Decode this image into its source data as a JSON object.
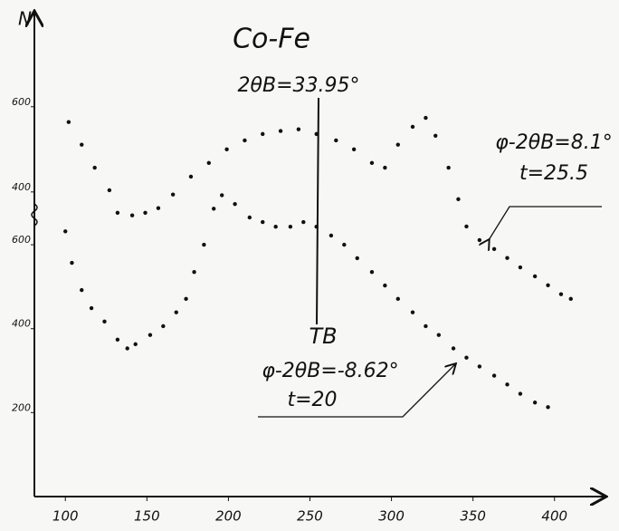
{
  "chart_data": {
    "type": "scatter",
    "title": "Co-Fe",
    "y_label": "N",
    "annotations": [
      "2θB=33.95°",
      "TB",
      "φ-2θB=8.1°",
      "t=25.5",
      "φ-2θB=-8.62°",
      "t=20"
    ],
    "xlim": [
      81,
      429
    ],
    "xticks": [
      100,
      150,
      200,
      250,
      300,
      350,
      400
    ],
    "ylim": [
      0,
      1140
    ],
    "yticks": [
      200,
      400,
      600
    ],
    "y2lim": [
      -315,
      808
    ],
    "y2ticks": [
      400,
      600
    ],
    "series": [
      {
        "axis": "y2",
        "color": "#111111",
        "x": [
          102,
          110,
          118,
          127,
          132,
          141,
          149,
          157,
          166,
          177,
          188,
          199,
          210,
          221,
          232,
          243,
          254,
          266,
          277,
          288,
          296,
          304,
          313,
          321,
          327,
          335,
          341,
          346,
          354,
          363,
          371,
          379,
          388,
          396,
          404,
          410
        ],
        "values": [
          564,
          511,
          457,
          404,
          351,
          345,
          351,
          362,
          394,
          436,
          468,
          500,
          521,
          536,
          543,
          547,
          536,
          521,
          500,
          468,
          457,
          511,
          553,
          574,
          532,
          457,
          383,
          319,
          287,
          266,
          245,
          223,
          202,
          181,
          160,
          149
        ]
      },
      {
        "color": "#111111",
        "x": [
          100,
          104,
          110,
          116,
          124,
          132,
          138,
          143,
          152,
          160,
          168,
          174,
          179,
          185,
          191,
          196,
          204,
          213,
          221,
          229,
          238,
          246,
          254,
          263,
          271,
          279,
          288,
          296,
          304,
          313,
          321,
          329,
          338,
          346,
          354,
          363,
          371,
          379,
          388,
          396
        ],
        "values": [
          632,
          557,
          492,
          449,
          417,
          374,
          353,
          363,
          385,
          406,
          439,
          471,
          535,
          600,
          686,
          718,
          697,
          665,
          654,
          643,
          643,
          654,
          643,
          622,
          600,
          568,
          535,
          503,
          471,
          439,
          406,
          385,
          353,
          331,
          310,
          288,
          267,
          245,
          224,
          213
        ]
      }
    ]
  }
}
